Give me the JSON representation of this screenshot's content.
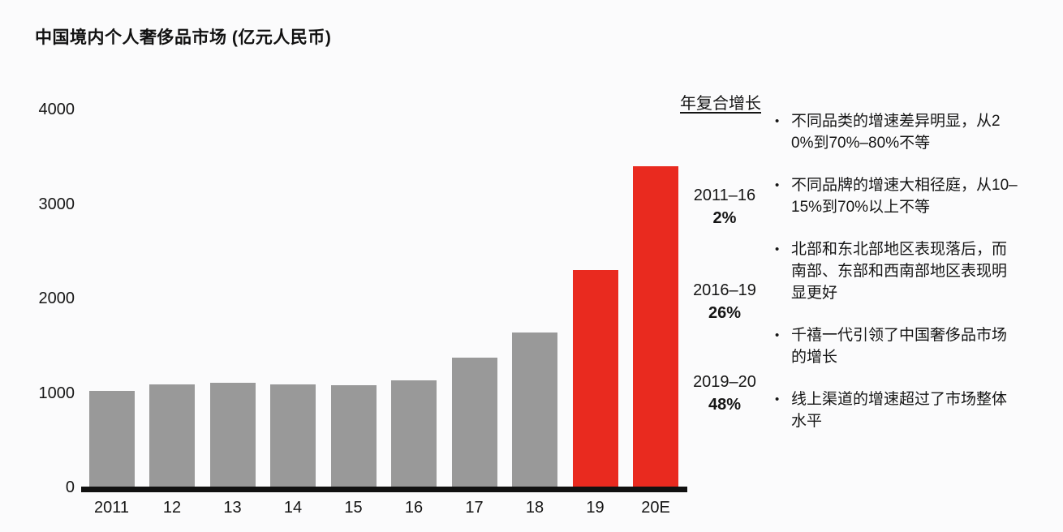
{
  "title": "中国境内个人奢侈品市场 (亿元人民币)",
  "colors": {
    "bar_gray": "#999999",
    "bar_red": "#e92a1f",
    "axis": "#111111",
    "background": "#fbfbfc",
    "text": "#151515"
  },
  "chart_data": {
    "type": "bar",
    "title": "中国境内个人奢侈品市场 (亿元人民币)",
    "categories": [
      "2011",
      "12",
      "13",
      "14",
      "15",
      "16",
      "17",
      "18",
      "19",
      "20E"
    ],
    "values": [
      1020,
      1090,
      1110,
      1090,
      1080,
      1130,
      1370,
      1640,
      2300,
      3400
    ],
    "bar_color_keys": [
      "bar_gray",
      "bar_gray",
      "bar_gray",
      "bar_gray",
      "bar_gray",
      "bar_gray",
      "bar_gray",
      "bar_gray",
      "bar_red",
      "bar_red"
    ],
    "xlabel": "",
    "ylabel": "",
    "ylim": [
      0,
      4000
    ],
    "yticks": [
      0,
      1000,
      2000,
      3000,
      4000
    ],
    "grid": false,
    "legend": false
  },
  "cagr": {
    "header": "年复合增长",
    "entries": [
      {
        "period": "2011–16",
        "value": "2%"
      },
      {
        "period": "2016–19",
        "value": "26%"
      },
      {
        "period": "2019–20",
        "value": "48%"
      }
    ]
  },
  "bullets": {
    "marker": "•",
    "items": [
      "不同品类的增速差异明显，从20%到70%–80%不等",
      "不同品牌的增速大相径庭，从10–15%到70%以上不等",
      "北部和东北部地区表现落后，而南部、东部和西南部地区表现明显更好",
      "千禧一代引领了中国奢侈品市场的增长",
      "线上渠道的增速超过了市场整体水平"
    ]
  }
}
